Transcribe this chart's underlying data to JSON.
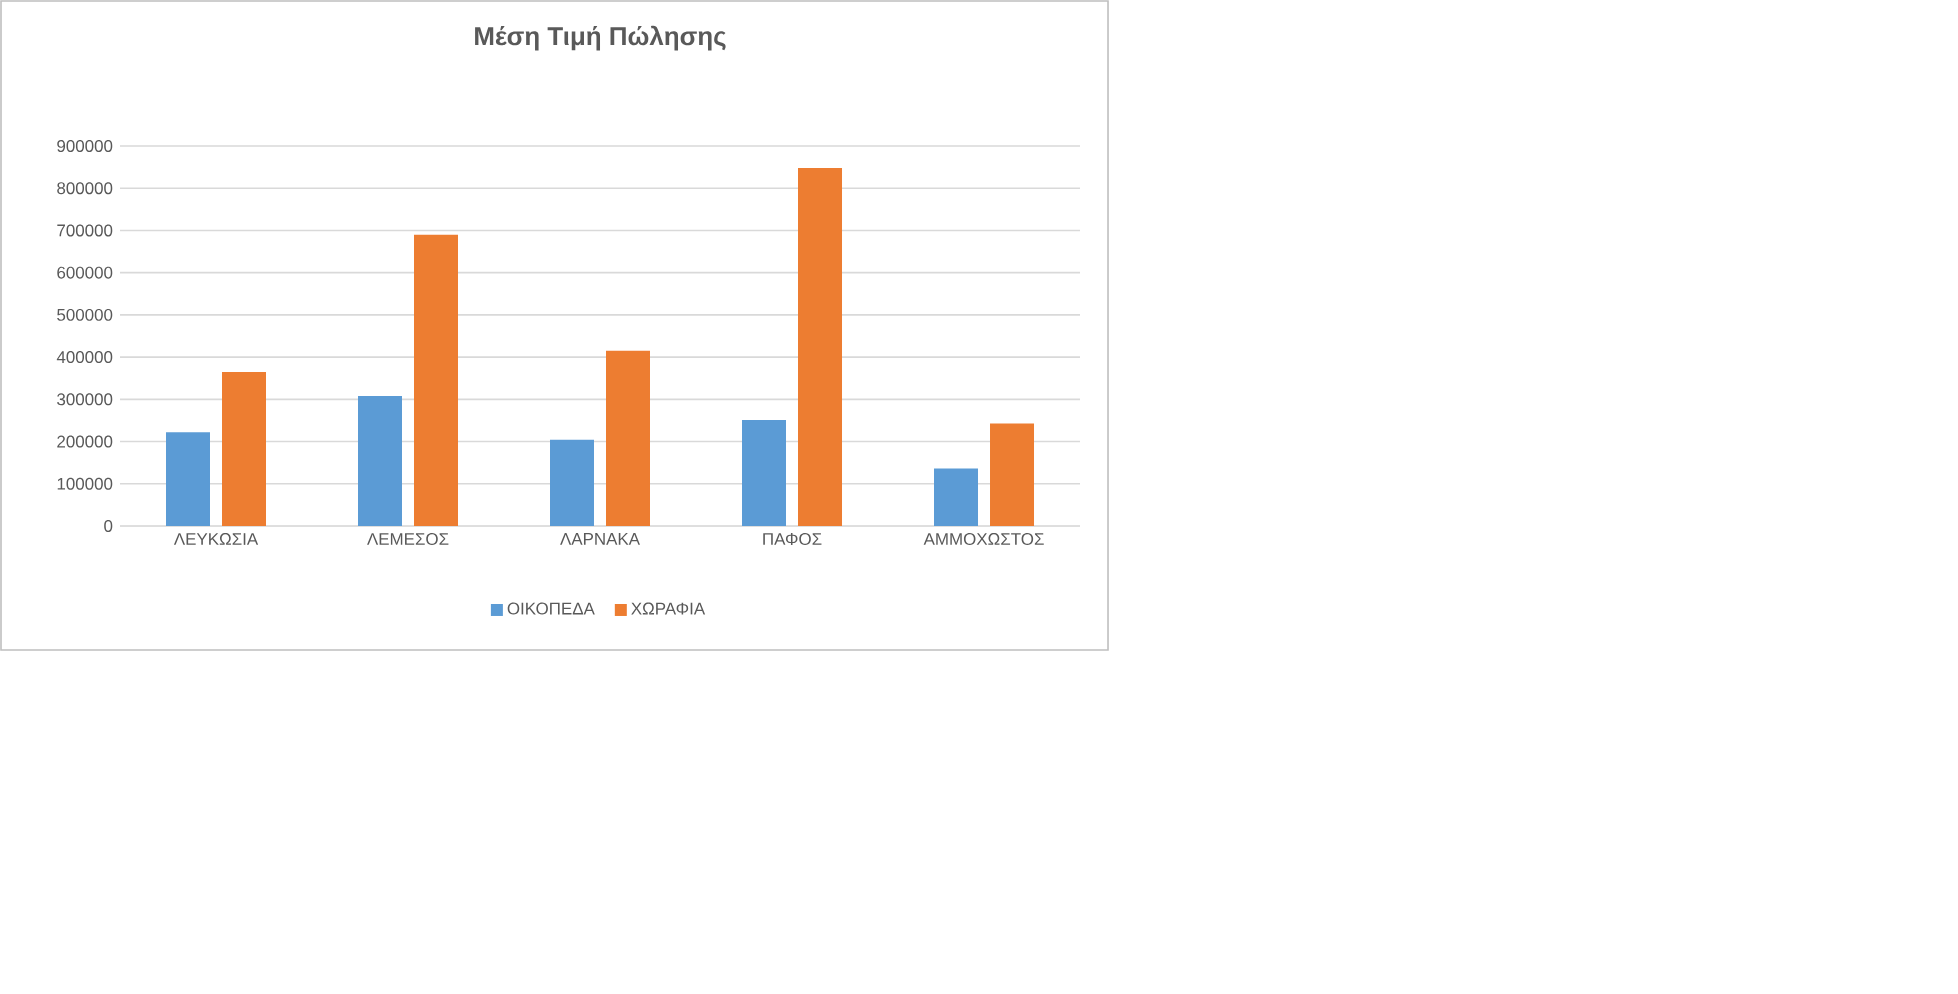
{
  "chart_data": {
    "type": "bar",
    "title": "Μέση Τιμή Πώλησης",
    "categories": [
      "ΛΕΥΚΩΣΙΑ",
      "ΛΕΜΕΣΟΣ",
      "ΛΑΡΝΑΚΑ",
      "ΠΑΦΟΣ",
      "ΑΜΜΟΧΩΣΤΟΣ"
    ],
    "series": [
      {
        "name": "ΟΙΚΟΠΕΔΑ",
        "color": "#5b9bd5",
        "values": [
          222000,
          308000,
          204000,
          251000,
          136000
        ]
      },
      {
        "name": "ΧΩΡΑΦΙΑ",
        "color": "#ed7d31",
        "values": [
          365000,
          690000,
          415000,
          848000,
          243000
        ]
      }
    ],
    "ylim": [
      0,
      900000
    ],
    "yticks": [
      0,
      100000,
      200000,
      300000,
      400000,
      500000,
      600000,
      700000,
      800000,
      900000
    ],
    "grid": "y",
    "legend": "bottom"
  }
}
